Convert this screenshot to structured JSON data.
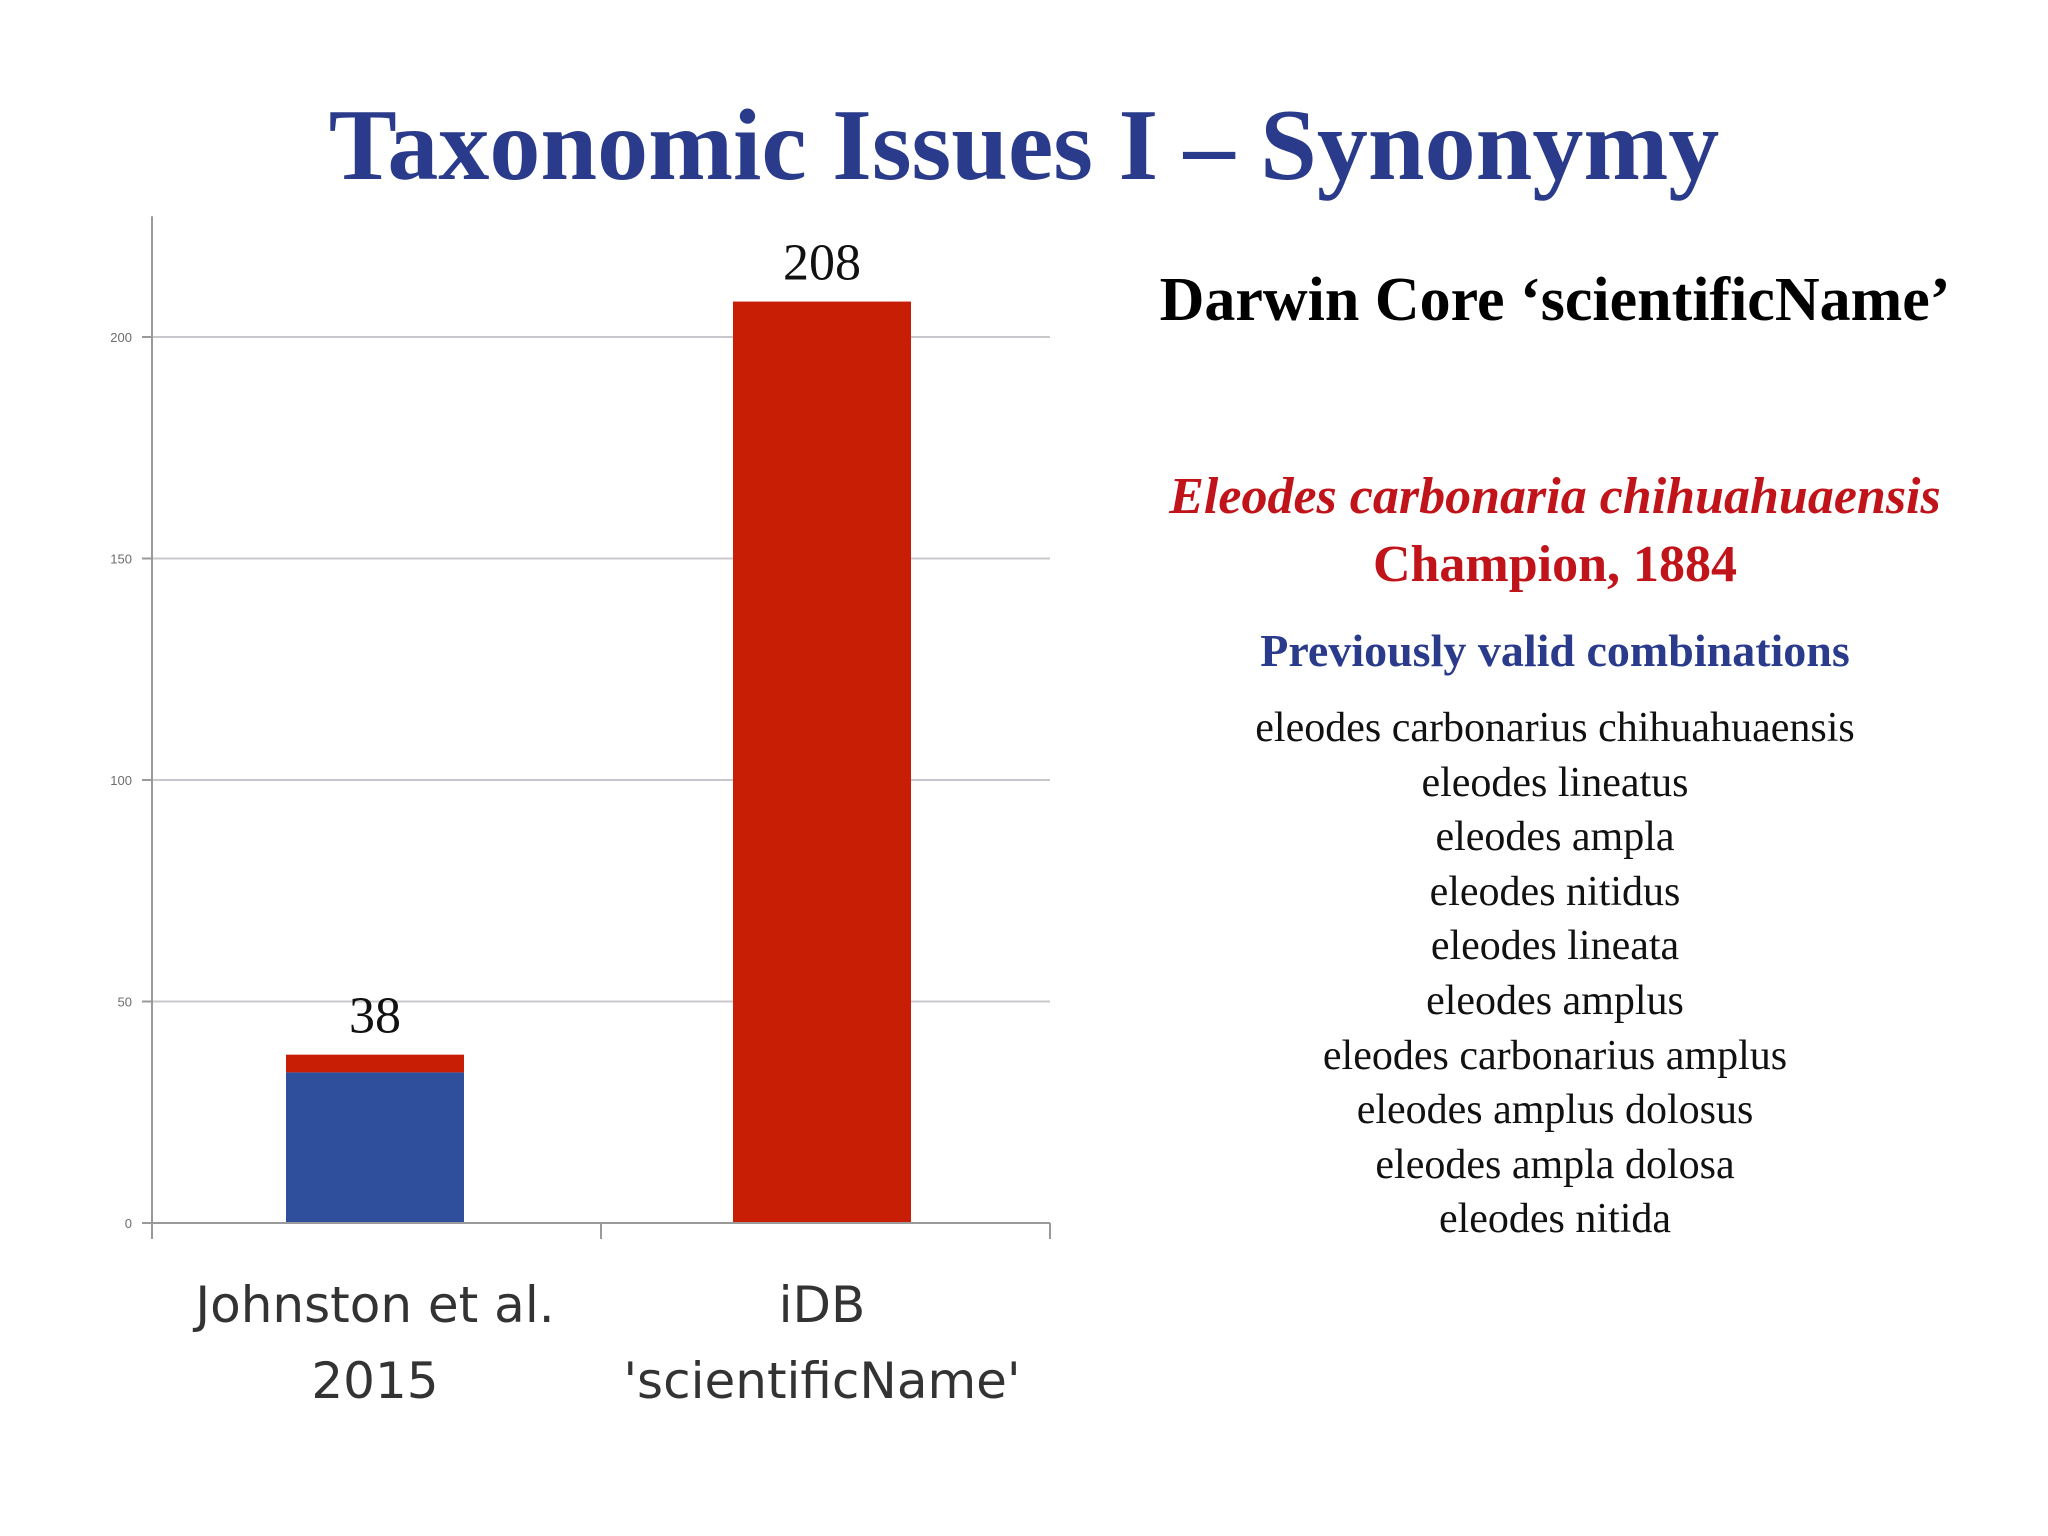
{
  "slide": {
    "title": "Taxonomic Issues I – Synonymy"
  },
  "side_panel": {
    "heading": "Darwin Core ‘scientificName’",
    "species_name": "Eleodes carbonaria chihuahuaensis",
    "species_author": "Champion, 1884",
    "combinations_heading": "Previously valid combinations",
    "combinations": [
      "eleodes carbonarius chihuahuaensis",
      "eleodes lineatus",
      "eleodes ampla",
      "eleodes nitidus",
      "eleodes lineata",
      "eleodes amplus",
      "eleodes carbonarius amplus",
      "eleodes amplus dolosus",
      "eleodes ampla dolosa",
      "eleodes nitida"
    ]
  },
  "colors": {
    "title": "#2b3b8b",
    "accent_red": "#c0141a",
    "bar_blue": "#2f4f9c",
    "bar_red": "#c81e05",
    "gridline": "#c8c8cc"
  },
  "chart_data": {
    "type": "bar",
    "stacked": true,
    "categories": [
      [
        "Johnston et al.",
        "2015"
      ],
      [
        "iDB",
        "'scientificName'"
      ]
    ],
    "series": [
      {
        "color": "#2f4f9c",
        "values": [
          34,
          0
        ]
      },
      {
        "color": "#c81e05",
        "values": [
          4,
          208
        ]
      }
    ],
    "data_labels": [
      "38",
      "208"
    ],
    "yticks": [
      0,
      50,
      100,
      150,
      200
    ],
    "ylim": [
      0,
      225
    ],
    "grid": true,
    "legend": "none"
  }
}
